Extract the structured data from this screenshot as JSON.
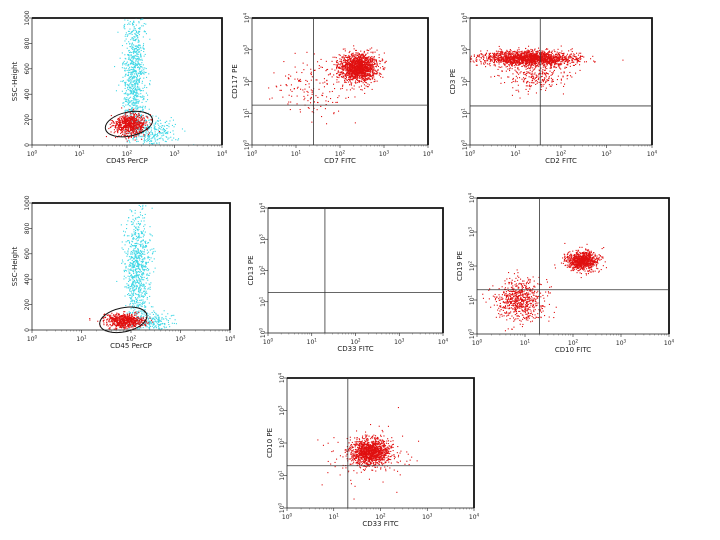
{
  "colors": {
    "events": "#e01010",
    "background_events": "#40d8e6",
    "quadrant": "#333333",
    "gate": "#111111"
  },
  "chart_data": [
    {
      "id": "p1",
      "type": "scatter",
      "kind": "gate",
      "xlabel": "CD45 PerCP",
      "ylabel": "SSC-Height",
      "xscale": "log",
      "xlim": [
        1,
        10000
      ],
      "yscale": "linear",
      "ylim": [
        0,
        1000
      ],
      "yticks": [
        "0",
        "200",
        "400",
        "600",
        "800",
        "1000"
      ],
      "gate": {
        "x": 110,
        "y": 165
      },
      "series": [
        {
          "role": "gated",
          "color": "#e01010",
          "n": 700,
          "cx": 115,
          "cy": 165,
          "sx": 0.17,
          "sy": 40
        },
        {
          "role": "other",
          "color": "#40d8e6",
          "n": 900,
          "cx": 140,
          "cy": 520,
          "sx": 0.12,
          "sy": 280
        },
        {
          "role": "other",
          "color": "#40d8e6",
          "n": 250,
          "cx": 350,
          "cy": 110,
          "sx": 0.25,
          "sy": 60
        }
      ]
    },
    {
      "id": "p2",
      "type": "scatter",
      "kind": "quadrant",
      "xlabel": "CD7 FITC",
      "ylabel": "CD117 PE",
      "xscale": "log",
      "xlim": [
        1,
        10000
      ],
      "yscale": "log",
      "ylim": [
        1,
        10000
      ],
      "quadrant": {
        "x": 25,
        "y": 18
      },
      "series": [
        {
          "role": "events",
          "color": "#e01010",
          "n": 1500,
          "cx": 250,
          "cy": 280,
          "sx": 0.22,
          "sy": 0.22
        },
        {
          "role": "events",
          "color": "#e01010",
          "n": 160,
          "cx": 20,
          "cy": 60,
          "sx": 0.45,
          "sy": 0.45
        }
      ]
    },
    {
      "id": "p3",
      "type": "scatter",
      "kind": "quadrant",
      "xlabel": "CD2 FITC",
      "ylabel": "CD3 PE",
      "xscale": "log",
      "xlim": [
        1,
        10000
      ],
      "yscale": "log",
      "ylim": [
        1,
        10000
      ],
      "quadrant": {
        "x": 35,
        "y": 17
      },
      "series": [
        {
          "role": "events",
          "color": "#e01010",
          "n": 1800,
          "cx": 20,
          "cy": 550,
          "sx": 0.5,
          "sy": 0.12
        },
        {
          "role": "events",
          "color": "#e01010",
          "n": 250,
          "cx": 30,
          "cy": 150,
          "sx": 0.35,
          "sy": 0.25
        }
      ]
    },
    {
      "id": "p4",
      "type": "scatter",
      "kind": "gate",
      "xlabel": "CD45 PerCP",
      "ylabel": "SSC-Height",
      "xscale": "log",
      "xlim": [
        1,
        10000
      ],
      "yscale": "linear",
      "ylim": [
        0,
        1000
      ],
      "yticks": [
        "0",
        "200",
        "400",
        "600",
        "800",
        "1000"
      ],
      "gate": {
        "x": 70,
        "y": 80
      },
      "series": [
        {
          "role": "gated",
          "color": "#e01010",
          "n": 650,
          "cx": 75,
          "cy": 75,
          "sx": 0.2,
          "sy": 28
        },
        {
          "role": "other",
          "color": "#40d8e6",
          "n": 800,
          "cx": 130,
          "cy": 470,
          "sx": 0.13,
          "sy": 230
        },
        {
          "role": "other",
          "color": "#40d8e6",
          "n": 200,
          "cx": 250,
          "cy": 70,
          "sx": 0.2,
          "sy": 40
        }
      ]
    },
    {
      "id": "p5",
      "type": "scatter",
      "kind": "quadrant",
      "xlabel": "CD33 FITC",
      "ylabel": "CD13 PE",
      "xscale": "log",
      "xlim": [
        1,
        10000
      ],
      "yscale": "log",
      "ylim": [
        1,
        10000
      ],
      "quadrant": {
        "x": 20,
        "y": 20
      },
      "series": []
    },
    {
      "id": "p6",
      "type": "scatter",
      "kind": "quadrant",
      "xlabel": "CD10 FITC",
      "ylabel": "CD19 PE",
      "xscale": "log",
      "xlim": [
        1,
        10000
      ],
      "yscale": "log",
      "ylim": [
        1,
        10000
      ],
      "quadrant": {
        "x": 20,
        "y": 20
      },
      "series": [
        {
          "role": "events",
          "color": "#e01010",
          "n": 900,
          "cx": 150,
          "cy": 150,
          "sx": 0.16,
          "sy": 0.14
        },
        {
          "role": "events",
          "color": "#e01010",
          "n": 650,
          "cx": 8,
          "cy": 10,
          "sx": 0.25,
          "sy": 0.3
        }
      ]
    },
    {
      "id": "p7",
      "type": "scatter",
      "kind": "quadrant",
      "xlabel": "CD33 FITC",
      "ylabel": "CD10 PE",
      "xscale": "log",
      "xlim": [
        1,
        10000
      ],
      "yscale": "log",
      "ylim": [
        1,
        10000
      ],
      "quadrant": {
        "x": 20,
        "y": 20
      },
      "series": [
        {
          "role": "events",
          "color": "#e01010",
          "n": 1200,
          "cx": 60,
          "cy": 55,
          "sx": 0.2,
          "sy": 0.2
        },
        {
          "role": "events",
          "color": "#e01010",
          "n": 120,
          "cx": 50,
          "cy": 40,
          "sx": 0.45,
          "sy": 0.45
        }
      ]
    }
  ]
}
